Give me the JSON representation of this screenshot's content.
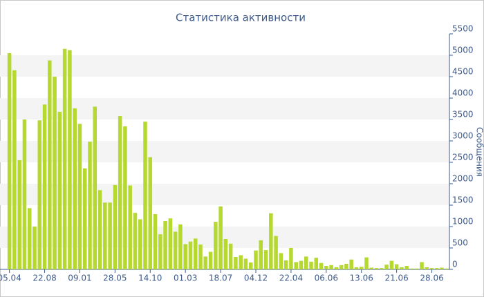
{
  "chart_data": {
    "type": "bar",
    "title": "Статистика активности",
    "y_axis_label": "Сообщения",
    "categories": [
      "05.04",
      null,
      null,
      null,
      null,
      null,
      null,
      "22.08",
      null,
      null,
      null,
      null,
      null,
      null,
      "09.01",
      null,
      null,
      null,
      null,
      null,
      null,
      "28.05",
      null,
      null,
      null,
      null,
      null,
      null,
      "14.10",
      null,
      null,
      null,
      null,
      null,
      null,
      "01.03",
      null,
      null,
      null,
      null,
      null,
      null,
      "18.07",
      null,
      null,
      null,
      null,
      null,
      null,
      "04.12",
      null,
      null,
      null,
      null,
      null,
      null,
      "22.04",
      null,
      null,
      null,
      null,
      null,
      null,
      "06.06",
      null,
      null,
      null,
      null,
      null,
      null,
      "13.06",
      null,
      null,
      null,
      null,
      null,
      null,
      "21.06",
      null,
      null,
      null,
      null,
      null,
      null,
      "28.06",
      null,
      null,
      null
    ],
    "values": [
      5050,
      4650,
      2550,
      3500,
      1430,
      1000,
      3480,
      3850,
      4880,
      4500,
      3680,
      5150,
      5120,
      3760,
      3400,
      2360,
      2980,
      3800,
      1850,
      1560,
      1560,
      1970,
      3580,
      3340,
      1960,
      1320,
      1170,
      3450,
      2620,
      1290,
      820,
      1130,
      1190,
      880,
      1050,
      590,
      650,
      720,
      580,
      300,
      410,
      1110,
      1470,
      710,
      600,
      290,
      330,
      250,
      160,
      440,
      680,
      450,
      1310,
      780,
      380,
      210,
      500,
      170,
      200,
      300,
      180,
      270,
      150,
      80,
      100,
      50,
      100,
      130,
      230,
      50,
      60,
      280,
      40,
      30,
      30,
      110,
      200,
      120,
      50,
      80,
      20,
      20,
      170,
      50,
      30,
      30,
      40,
      20
    ],
    "color": "#b5d930",
    "ylim": [
      0,
      5500
    ],
    "yticks": [
      0,
      500,
      1000,
      1500,
      2000,
      2500,
      3000,
      3500,
      4000,
      4500,
      5000,
      5500
    ],
    "grid": true
  }
}
